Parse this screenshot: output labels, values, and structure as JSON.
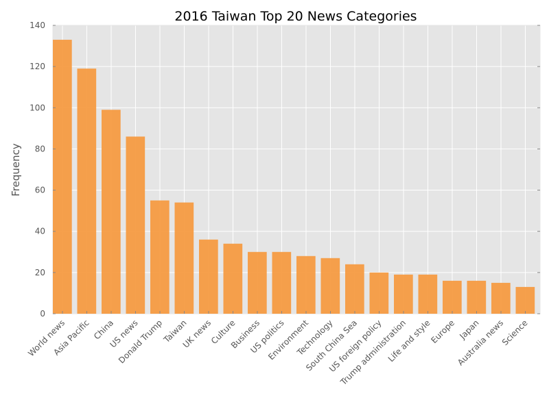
{
  "chart_data": {
    "type": "bar",
    "title": "2016 Taiwan Top 20 News Categories",
    "xlabel": "",
    "ylabel": "Frequency",
    "categories": [
      "World news",
      "Asia Pacific",
      "China",
      "US news",
      "Donald Trump",
      "Taiwan",
      "UK news",
      "Culture",
      "Business",
      "US politics",
      "Environment",
      "Technology",
      "South China Sea",
      "US foreign policy",
      "Trump administration",
      "Life and style",
      "Europe",
      "Japan",
      "Australia news",
      "Science"
    ],
    "values": [
      133,
      119,
      99,
      86,
      55,
      54,
      36,
      34,
      30,
      30,
      28,
      27,
      24,
      20,
      19,
      19,
      16,
      16,
      15,
      13
    ],
    "ylim": [
      0,
      140
    ],
    "yticks": [
      "0",
      "20",
      "40",
      "60",
      "80",
      "100",
      "120",
      "140"
    ],
    "grid": true,
    "colors": {
      "bar": "#f59b42",
      "background": "#e5e5e5",
      "grid": "#ffffff"
    }
  }
}
